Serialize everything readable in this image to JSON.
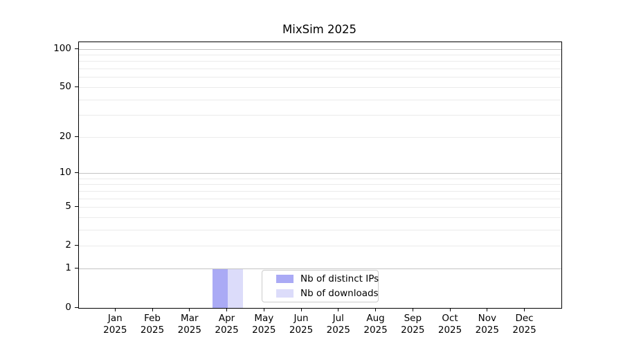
{
  "chart_data": {
    "type": "bar",
    "title": "MixSim 2025",
    "xlabel": "",
    "ylabel": "",
    "categories": [
      "Jan 2025",
      "Feb 2025",
      "Mar 2025",
      "Apr 2025",
      "May 2025",
      "Jun 2025",
      "Jul 2025",
      "Aug 2025",
      "Sep 2025",
      "Oct 2025",
      "Nov 2025",
      "Dec 2025"
    ],
    "series": [
      {
        "name": "Nb of distinct IPs",
        "color": "#aaaaf5",
        "values": [
          0,
          0,
          0,
          1,
          0,
          0,
          0,
          0,
          0,
          0,
          0,
          0
        ]
      },
      {
        "name": "Nb of downloads",
        "color": "#dcdcfa",
        "values": [
          0,
          0,
          0,
          1,
          0,
          0,
          0,
          0,
          0,
          0,
          0,
          0
        ]
      }
    ],
    "yscale": "log10(1+x)",
    "ylim": [
      0,
      101
    ],
    "ytick_values": [
      0,
      1,
      2,
      5,
      10,
      20,
      50,
      100
    ],
    "ytick_labels": [
      "0",
      "1",
      "2",
      "5",
      "10",
      "20",
      "50",
      "100"
    ],
    "major_gridline_values": [
      1,
      10,
      100
    ],
    "minor_gridline_values": [
      2,
      3,
      4,
      5,
      6,
      7,
      8,
      9,
      20,
      30,
      40,
      50,
      60,
      70,
      80,
      90
    ],
    "grid": "horizontal",
    "legend_position": "inside-bottom-center"
  },
  "colors": {
    "bar_distinct_ips": "#aaaaf5",
    "bar_downloads": "#dcdcfa",
    "axis_spine": "#000000",
    "major_grid": "#c3c3c3",
    "minor_grid": "#ebebeb",
    "legend_border": "#cccccc",
    "text": "#000000"
  }
}
